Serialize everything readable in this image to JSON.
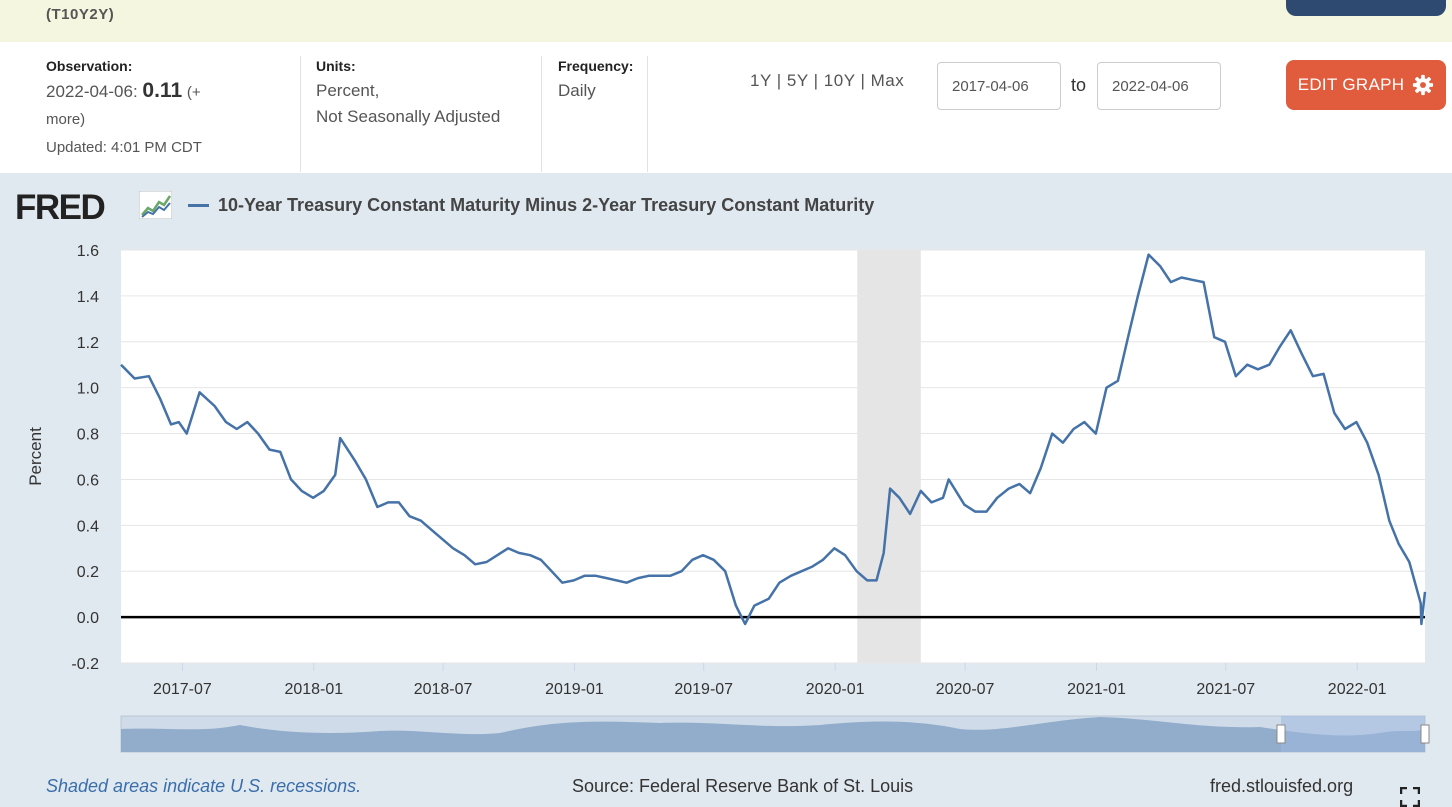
{
  "header": {
    "series_id": "(T10Y2Y)"
  },
  "meta": {
    "observation_label": "Observation:",
    "observation_date": "2022-04-06:",
    "observation_value": "0.11",
    "observation_more_1": "(+",
    "observation_more_2": "more)",
    "updated": "Updated: 4:01 PM CDT",
    "units_label": "Units:",
    "units_1": "Percent,",
    "units_2": "Not Seasonally Adjusted",
    "frequency_label": "Frequency:",
    "frequency": "Daily"
  },
  "controls": {
    "range_1y": "1Y",
    "range_5y": "5Y",
    "range_10y": "10Y",
    "range_max": "Max",
    "sep": "|",
    "start_date": "2017-04-06",
    "end_date": "2022-04-06",
    "to_label": "to",
    "edit_graph": "EDIT GRAPH",
    "gear_icon": "gear-icon"
  },
  "graph": {
    "logo": "FRED",
    "logo_icon": "chart-line-icon",
    "footer_note": "Shaded areas indicate U.S. recessions.",
    "source": "Source: Federal Reserve Bank of St. Louis",
    "url": "fred.stlouisfed.org",
    "fullscreen_icon": "fullscreen-icon"
  },
  "chart_data": {
    "type": "line",
    "title": "",
    "xlabel": "",
    "ylabel": "Percent",
    "ylim": [
      -0.2,
      1.6
    ],
    "xlim": [
      "2017-04-06",
      "2022-04-06"
    ],
    "yticks": [
      "1.6",
      "1.4",
      "1.2",
      "1.0",
      "0.8",
      "0.6",
      "0.4",
      "0.2",
      "0.0",
      "-0.2"
    ],
    "xticks": [
      "2017-07",
      "2018-01",
      "2018-07",
      "2019-01",
      "2019-07",
      "2020-01",
      "2020-07",
      "2021-01",
      "2021-07",
      "2022-01"
    ],
    "grid": true,
    "legend_position": "top-left",
    "series_color": "#4572a7",
    "recession_shading": [
      [
        "2020-02-01",
        "2020-04-30"
      ]
    ],
    "series": [
      {
        "name": "10-Year Treasury Constant Maturity Minus 2-Year Treasury Constant Maturity",
        "x": [
          "2017-04-06",
          "2017-04-25",
          "2017-05-15",
          "2017-05-31",
          "2017-06-15",
          "2017-06-26",
          "2017-07-07",
          "2017-07-25",
          "2017-08-15",
          "2017-08-31",
          "2017-09-15",
          "2017-09-30",
          "2017-10-15",
          "2017-10-31",
          "2017-11-15",
          "2017-11-30",
          "2017-12-15",
          "2017-12-31",
          "2018-01-15",
          "2018-01-31",
          "2018-02-07",
          "2018-02-28",
          "2018-03-15",
          "2018-03-31",
          "2018-04-15",
          "2018-04-30",
          "2018-05-15",
          "2018-05-31",
          "2018-06-15",
          "2018-07-15",
          "2018-07-31",
          "2018-08-15",
          "2018-08-31",
          "2018-09-15",
          "2018-09-30",
          "2018-10-15",
          "2018-10-31",
          "2018-11-15",
          "2018-11-30",
          "2018-12-15",
          "2018-12-31",
          "2019-01-15",
          "2019-01-31",
          "2019-02-15",
          "2019-03-15",
          "2019-03-31",
          "2019-04-15",
          "2019-05-15",
          "2019-05-31",
          "2019-06-15",
          "2019-06-30",
          "2019-07-15",
          "2019-07-31",
          "2019-08-15",
          "2019-08-28",
          "2019-09-10",
          "2019-09-30",
          "2019-10-15",
          "2019-10-31",
          "2019-11-15",
          "2019-11-30",
          "2019-12-15",
          "2019-12-31",
          "2020-01-15",
          "2020-01-31",
          "2020-02-15",
          "2020-02-28",
          "2020-03-09",
          "2020-03-18",
          "2020-03-31",
          "2020-04-15",
          "2020-04-30",
          "2020-05-15",
          "2020-05-31",
          "2020-06-08",
          "2020-06-30",
          "2020-07-15",
          "2020-07-31",
          "2020-08-15",
          "2020-08-31",
          "2020-09-15",
          "2020-09-30",
          "2020-10-15",
          "2020-10-31",
          "2020-11-15",
          "2020-11-30",
          "2020-12-15",
          "2020-12-31",
          "2021-01-15",
          "2021-01-31",
          "2021-02-15",
          "2021-02-28",
          "2021-03-15",
          "2021-03-31",
          "2021-04-15",
          "2021-04-30",
          "2021-05-15",
          "2021-05-31",
          "2021-06-15",
          "2021-06-30",
          "2021-07-15",
          "2021-07-31",
          "2021-08-15",
          "2021-08-31",
          "2021-09-15",
          "2021-09-30",
          "2021-10-15",
          "2021-10-31",
          "2021-11-15",
          "2021-11-30",
          "2021-12-15",
          "2021-12-31",
          "2022-01-15",
          "2022-01-31",
          "2022-02-15",
          "2022-02-28",
          "2022-03-15",
          "2022-03-31",
          "2022-04-01",
          "2022-04-06"
        ],
        "values": [
          1.1,
          1.04,
          1.05,
          0.95,
          0.84,
          0.85,
          0.8,
          0.98,
          0.92,
          0.85,
          0.82,
          0.85,
          0.8,
          0.73,
          0.72,
          0.6,
          0.55,
          0.52,
          0.55,
          0.62,
          0.78,
          0.68,
          0.6,
          0.48,
          0.5,
          0.5,
          0.44,
          0.42,
          0.38,
          0.3,
          0.27,
          0.23,
          0.24,
          0.27,
          0.3,
          0.28,
          0.27,
          0.25,
          0.2,
          0.15,
          0.16,
          0.18,
          0.18,
          0.17,
          0.15,
          0.17,
          0.18,
          0.18,
          0.2,
          0.25,
          0.27,
          0.25,
          0.2,
          0.05,
          -0.03,
          0.05,
          0.08,
          0.15,
          0.18,
          0.2,
          0.22,
          0.25,
          0.3,
          0.27,
          0.2,
          0.16,
          0.16,
          0.28,
          0.56,
          0.52,
          0.45,
          0.55,
          0.5,
          0.52,
          0.6,
          0.49,
          0.46,
          0.46,
          0.52,
          0.56,
          0.58,
          0.54,
          0.65,
          0.8,
          0.76,
          0.82,
          0.85,
          0.8,
          1.0,
          1.03,
          1.23,
          1.4,
          1.58,
          1.53,
          1.46,
          1.48,
          1.47,
          1.46,
          1.22,
          1.2,
          1.05,
          1.1,
          1.08,
          1.1,
          1.18,
          1.25,
          1.15,
          1.05,
          1.06,
          0.89,
          0.82,
          0.85,
          0.76,
          0.62,
          0.42,
          0.32,
          0.24,
          0.06,
          -0.03,
          0.11
        ]
      }
    ]
  }
}
